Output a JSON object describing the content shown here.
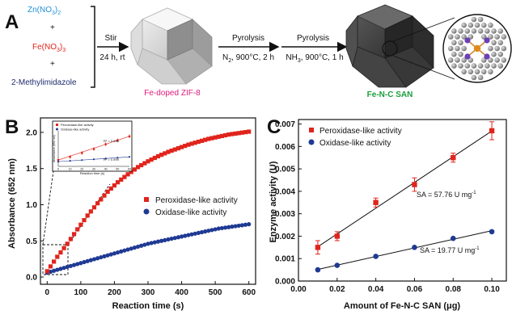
{
  "panel_a": {
    "letter": "A",
    "reagents": [
      "Zn(NO",
      "Fe(NO",
      "2-Methylimidazole"
    ],
    "reagent_subs": [
      "3",
      "3"
    ],
    "reagent_outer_subs": [
      "2",
      "3"
    ],
    "plus": "+",
    "step1_top": "Stir",
    "step1_bottom": "24 h, rt",
    "product1": "Fe-doped ZIF-8",
    "step2_top": "Pyrolysis",
    "step2_bottom_pre": "N",
    "step2_bottom_sub": "2",
    "step2_bottom_post": ", 900°C, 2 h",
    "step3_top": "Pyrolysis",
    "step3_bottom_pre": "NH",
    "step3_bottom_sub": "3",
    "step3_bottom_post": ", 900°C, 1 h",
    "product2": "Fe-N-C SAN",
    "colors": {
      "zn": "#1e90d6",
      "fe": "#e0241c",
      "methyl": "#1f2d6e",
      "zif": "#e0197d",
      "fenc": "#1a9e3a"
    }
  },
  "chart_data": [
    {
      "panel": "B",
      "type": "scatter",
      "xlabel": "Reaction time (s)",
      "ylabel": "Absorbance (652 nm)",
      "xlim": [
        -20,
        620
      ],
      "ylim": [
        -0.1,
        2.2
      ],
      "xticks": [
        0,
        100,
        200,
        300,
        400,
        500,
        600
      ],
      "yticks": [
        0.0,
        0.5,
        1.0,
        1.5,
        2.0
      ],
      "legend_position": "center-right",
      "series": [
        {
          "name": "Peroxidase-like activity",
          "color": "#e0241c",
          "marker": "square",
          "x": [
            0,
            30,
            60,
            90,
            120,
            150,
            180,
            210,
            240,
            270,
            300,
            330,
            360,
            390,
            420,
            450,
            480,
            510,
            540,
            570,
            600
          ],
          "y": [
            0.08,
            0.28,
            0.46,
            0.66,
            0.85,
            1.02,
            1.18,
            1.31,
            1.42,
            1.52,
            1.6,
            1.67,
            1.73,
            1.78,
            1.83,
            1.87,
            1.91,
            1.94,
            1.97,
            1.99,
            2.01
          ]
        },
        {
          "name": "Oxidase-like activity",
          "color": "#1f3a93",
          "marker": "circle",
          "x": [
            0,
            30,
            60,
            90,
            120,
            150,
            180,
            210,
            240,
            270,
            300,
            330,
            360,
            390,
            420,
            450,
            480,
            510,
            540,
            570,
            600
          ],
          "y": [
            0.06,
            0.1,
            0.14,
            0.18,
            0.22,
            0.26,
            0.3,
            0.34,
            0.38,
            0.42,
            0.46,
            0.49,
            0.52,
            0.55,
            0.58,
            0.61,
            0.64,
            0.67,
            0.69,
            0.71,
            0.73
          ]
        }
      ],
      "inset": {
        "xlabel": "Reaction time (s)",
        "ylabel": "Absorbance (652 nm)",
        "legend": [
          "Peroxidase-like activity",
          "Oxidase-like activity"
        ],
        "r2_labels": [
          "R² = 0.998",
          "R² = 0.999"
        ],
        "xticks": [
          0,
          10,
          20,
          30,
          40,
          50,
          60
        ],
        "peroxidase_x": [
          0,
          10,
          20,
          30,
          40,
          50,
          60
        ],
        "peroxidase_y": [
          0.08,
          0.12,
          0.17,
          0.22,
          0.28,
          0.33,
          0.38
        ],
        "oxidase_x": [
          0,
          10,
          20,
          30,
          40,
          50,
          60
        ],
        "oxidase_y": [
          0.06,
          0.07,
          0.08,
          0.09,
          0.1,
          0.11,
          0.12
        ]
      }
    },
    {
      "panel": "C",
      "type": "scatter",
      "xlabel": "Amount of Fe-N-C SAN (μg)",
      "ylabel": "Enzyme activity (U)",
      "xlim": [
        0.0,
        0.1075
      ],
      "ylim": [
        0.0,
        0.0072
      ],
      "xticks": [
        0.0,
        0.02,
        0.04,
        0.06,
        0.08,
        0.1
      ],
      "yticks": [
        0.0,
        0.001,
        0.002,
        0.003,
        0.004,
        0.005,
        0.006,
        0.007
      ],
      "legend_position": "top-left",
      "series": [
        {
          "name": "Peroxidase-like activity",
          "color": "#e0241c",
          "marker": "square",
          "x": [
            0.01,
            0.02,
            0.04,
            0.06,
            0.08,
            0.1
          ],
          "y": [
            0.0015,
            0.002,
            0.0035,
            0.0043,
            0.0055,
            0.0067
          ],
          "err": [
            0.0003,
            0.0002,
            0.0002,
            0.0003,
            0.0002,
            0.0004
          ],
          "annotation": "SA = 57.76 U mg",
          "annotation_sup": "-1"
        },
        {
          "name": "Oxidase-like activity",
          "color": "#1f3a93",
          "marker": "circle",
          "x": [
            0.01,
            0.02,
            0.04,
            0.06,
            0.08,
            0.1
          ],
          "y": [
            0.0005,
            0.0007,
            0.0011,
            0.0015,
            0.0019,
            0.0022
          ],
          "err": [
            5e-05,
            5e-05,
            5e-05,
            5e-05,
            5e-05,
            5e-05
          ],
          "annotation": "SA = 19.77 U mg",
          "annotation_sup": "-1"
        }
      ]
    }
  ]
}
